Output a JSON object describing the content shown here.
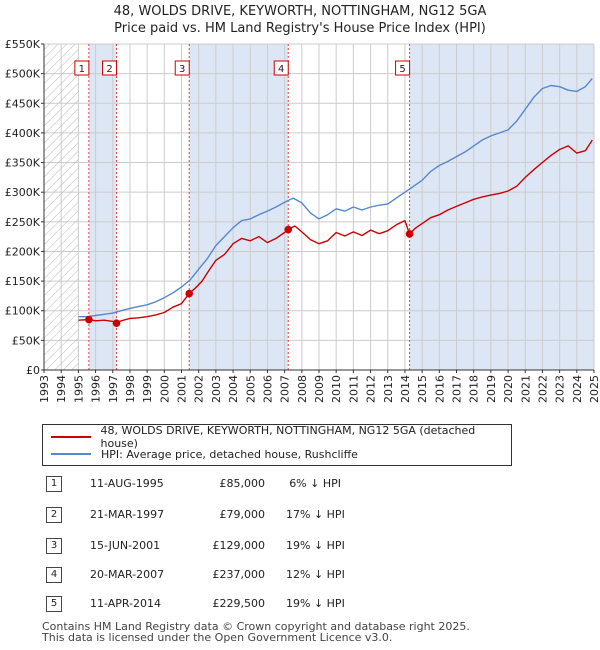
{
  "title_line1": "48, WOLDS DRIVE, KEYWORTH, NOTTINGHAM, NG12 5GA",
  "title_line2": "Price paid vs. HM Land Registry's House Price Index (HPI)",
  "colors": {
    "red": "#cc0000",
    "blue": "#5588cc",
    "shade": "#dde6f5"
  },
  "chart_data": {
    "type": "line",
    "title": "48, WOLDS DRIVE, KEYWORTH, NOTTINGHAM, NG12 5GA",
    "subtitle": "Price paid vs. HM Land Registry's House Price Index (HPI)",
    "xlim": [
      1993,
      2025
    ],
    "ylim": [
      0,
      550000
    ],
    "x_ticks": [
      1993,
      1994,
      1995,
      1996,
      1997,
      1998,
      1999,
      2000,
      2001,
      2002,
      2003,
      2004,
      2005,
      2006,
      2007,
      2008,
      2009,
      2010,
      2011,
      2012,
      2013,
      2014,
      2015,
      2016,
      2017,
      2018,
      2019,
      2020,
      2021,
      2022,
      2023,
      2024,
      2025
    ],
    "y_ticks": [
      {
        "value": 0,
        "label": "£0"
      },
      {
        "value": 50000,
        "label": "£50K"
      },
      {
        "value": 100000,
        "label": "£100K"
      },
      {
        "value": 150000,
        "label": "£150K"
      },
      {
        "value": 200000,
        "label": "£200K"
      },
      {
        "value": 250000,
        "label": "£250K"
      },
      {
        "value": 300000,
        "label": "£300K"
      },
      {
        "value": 350000,
        "label": "£350K"
      },
      {
        "value": 400000,
        "label": "£400K"
      },
      {
        "value": 450000,
        "label": "£450K"
      },
      {
        "value": 500000,
        "label": "£500K"
      },
      {
        "value": 550000,
        "label": "£550K"
      }
    ],
    "hatch_before": 1995.0,
    "shaded_intervals": [
      [
        1995.61,
        1997.22
      ],
      [
        2001.45,
        2007.21
      ],
      [
        2014.27,
        2025.0
      ]
    ],
    "series": [
      {
        "name": "48, WOLDS DRIVE, KEYWORTH, NOTTINGHAM, NG12 5GA (detached house)",
        "color": "#cc0000",
        "x": [
          1995.0,
          1995.61,
          1996.0,
          1996.5,
          1997.0,
          1997.22,
          1997.5,
          1998.0,
          1998.5,
          1999.0,
          1999.5,
          2000.0,
          2000.5,
          2001.0,
          2001.45,
          2001.8,
          2002.2,
          2002.6,
          2003.0,
          2003.5,
          2004.0,
          2004.5,
          2005.0,
          2005.5,
          2006.0,
          2006.5,
          2007.0,
          2007.21,
          2007.6,
          2008.0,
          2008.5,
          2009.0,
          2009.5,
          2010.0,
          2010.5,
          2011.0,
          2011.5,
          2012.0,
          2012.5,
          2013.0,
          2013.5,
          2014.0,
          2014.27,
          2014.6,
          2015.0,
          2015.5,
          2016.0,
          2016.5,
          2017.0,
          2017.5,
          2018.0,
          2018.5,
          2019.0,
          2019.5,
          2020.0,
          2020.5,
          2021.0,
          2021.5,
          2022.0,
          2022.5,
          2023.0,
          2023.5,
          2024.0,
          2024.5,
          2024.9
        ],
        "y": [
          84000,
          85000,
          83000,
          84000,
          82000,
          79000,
          83000,
          87000,
          88000,
          90000,
          93000,
          97000,
          106000,
          112000,
          129000,
          138000,
          150000,
          168000,
          185000,
          195000,
          213000,
          222000,
          218000,
          225000,
          215000,
          222000,
          232000,
          237000,
          243000,
          233000,
          220000,
          213000,
          218000,
          232000,
          226000,
          233000,
          227000,
          236000,
          230000,
          235000,
          245000,
          252000,
          229500,
          239000,
          247000,
          257000,
          262000,
          270000,
          276000,
          282000,
          288000,
          292000,
          295000,
          298000,
          302000,
          310000,
          325000,
          338000,
          350000,
          362000,
          372000,
          378000,
          366000,
          370000,
          388000
        ]
      },
      {
        "name": "HPI: Average price, detached house, Rushcliffe",
        "color": "#5588cc",
        "x": [
          1995.0,
          1995.5,
          1996.0,
          1996.5,
          1997.0,
          1997.5,
          1998.0,
          1998.5,
          1999.0,
          1999.5,
          2000.0,
          2000.5,
          2001.0,
          2001.5,
          2002.0,
          2002.5,
          2003.0,
          2003.5,
          2004.0,
          2004.5,
          2005.0,
          2005.5,
          2006.0,
          2006.5,
          2007.0,
          2007.5,
          2008.0,
          2008.5,
          2009.0,
          2009.5,
          2010.0,
          2010.5,
          2011.0,
          2011.5,
          2012.0,
          2012.5,
          2013.0,
          2013.5,
          2014.0,
          2014.5,
          2015.0,
          2015.5,
          2016.0,
          2016.5,
          2017.0,
          2017.5,
          2018.0,
          2018.5,
          2019.0,
          2019.5,
          2020.0,
          2020.5,
          2021.0,
          2021.5,
          2022.0,
          2022.5,
          2023.0,
          2023.5,
          2024.0,
          2024.5,
          2024.9
        ],
        "y": [
          90000,
          90000,
          92000,
          94000,
          96000,
          100000,
          104000,
          107000,
          110000,
          115000,
          122000,
          130000,
          140000,
          152000,
          170000,
          188000,
          210000,
          225000,
          240000,
          252000,
          255000,
          262000,
          268000,
          275000,
          283000,
          290000,
          282000,
          265000,
          255000,
          262000,
          272000,
          268000,
          275000,
          270000,
          275000,
          278000,
          280000,
          290000,
          300000,
          310000,
          320000,
          335000,
          345000,
          352000,
          360000,
          368000,
          378000,
          388000,
          395000,
          400000,
          405000,
          420000,
          440000,
          460000,
          475000,
          480000,
          478000,
          472000,
          470000,
          478000,
          492000
        ]
      }
    ],
    "sales": [
      {
        "n": "1",
        "x": 1995.61,
        "y": 85000
      },
      {
        "n": "2",
        "x": 1997.22,
        "y": 79000
      },
      {
        "n": "3",
        "x": 2001.45,
        "y": 129000
      },
      {
        "n": "4",
        "x": 2007.21,
        "y": 237000
      },
      {
        "n": "5",
        "x": 2014.27,
        "y": 229500
      }
    ]
  },
  "legend": {
    "red_label": "48, WOLDS DRIVE, KEYWORTH, NOTTINGHAM, NG12 5GA (detached house)",
    "blue_label": "HPI: Average price, detached house, Rushcliffe"
  },
  "transactions": [
    {
      "n": "1",
      "date": "11-AUG-1995",
      "price": "£85,000",
      "hpi": "6% ↓ HPI"
    },
    {
      "n": "2",
      "date": "21-MAR-1997",
      "price": "£79,000",
      "hpi": "17% ↓ HPI"
    },
    {
      "n": "3",
      "date": "15-JUN-2001",
      "price": "£129,000",
      "hpi": "19% ↓ HPI"
    },
    {
      "n": "4",
      "date": "20-MAR-2007",
      "price": "£237,000",
      "hpi": "12% ↓ HPI"
    },
    {
      "n": "5",
      "date": "11-APR-2014",
      "price": "£229,500",
      "hpi": "19% ↓ HPI"
    }
  ],
  "footer": {
    "line1": "Contains HM Land Registry data © Crown copyright and database right 2025.",
    "line2": "This data is licensed under the Open Government Licence v3.0."
  }
}
